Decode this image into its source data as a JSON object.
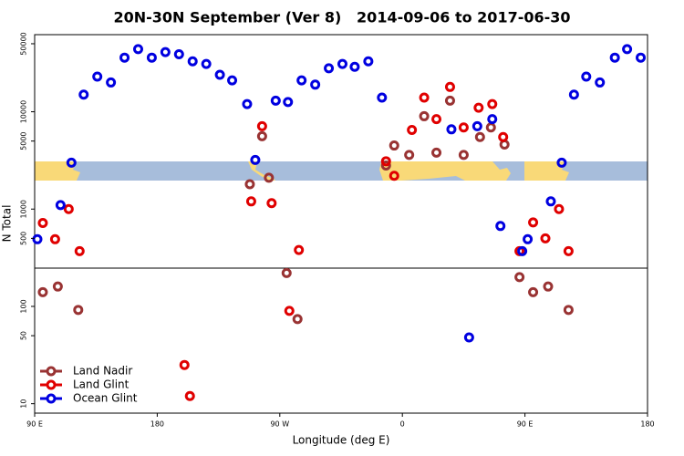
{
  "chart_data": {
    "type": "scatter",
    "title": "20N-30N September (Ver 8)   2014-09-06 to 2017-06-30",
    "xlabel": "Longitude (deg E)",
    "ylabel": "N Total",
    "xlim": [
      90,
      540
    ],
    "xticks": [
      {
        "value": 90,
        "label": "90 E"
      },
      180,
      {
        "value": 270,
        "label": "90 W"
      },
      {
        "value": 360,
        "label": "0"
      },
      {
        "value": 450,
        "label": "90 E"
      },
      {
        "value": 540,
        "label": "180"
      }
    ],
    "ylim": [
      8,
      62000
    ],
    "ylog": true,
    "yticks": [
      10,
      50,
      100,
      500,
      1000,
      5000,
      10000,
      50000
    ],
    "legend": "lower left",
    "series": [
      {
        "name": "Land Nadir",
        "color": "#993333",
        "x": [
          96,
          107,
          122,
          248,
          257,
          262,
          275,
          283,
          348,
          354,
          365,
          376,
          385,
          395,
          405,
          417,
          425,
          435,
          446,
          456,
          467,
          482
        ],
        "values": [
          140,
          160,
          92,
          1800,
          5600,
          2100,
          220,
          74,
          2800,
          4500,
          3600,
          9000,
          3800,
          13000,
          3600,
          5500,
          6900,
          4600,
          200,
          140,
          160,
          92
        ]
      },
      {
        "name": "Land Glint",
        "color": "#e00000",
        "x": [
          96,
          105,
          115,
          123,
          200,
          204,
          249,
          257,
          264,
          277,
          284,
          348,
          354,
          367,
          376,
          385,
          395,
          405,
          416,
          426,
          434,
          446,
          456,
          465,
          475,
          482
        ],
        "values": [
          720,
          490,
          1000,
          370,
          25,
          12,
          1200,
          7100,
          1150,
          90,
          380,
          3100,
          2200,
          6500,
          14000,
          8400,
          18000,
          6900,
          11000,
          12000,
          5500,
          370,
          730,
          500,
          1000,
          370
        ]
      },
      {
        "name": "Ocean Glint",
        "color": "#0000e0",
        "x": [
          92,
          109,
          117,
          126,
          136,
          146,
          156,
          166,
          176,
          186,
          196,
          206,
          216,
          226,
          235,
          246,
          252,
          267,
          276,
          286,
          296,
          306,
          316,
          325,
          335,
          345,
          396,
          409,
          415,
          426,
          432,
          448,
          452,
          469,
          477,
          486,
          495,
          505,
          516,
          525,
          535
        ],
        "values": [
          490,
          1100,
          3000,
          15000,
          23000,
          20000,
          36000,
          44000,
          36000,
          41000,
          39000,
          33000,
          31000,
          24000,
          21000,
          12000,
          3200,
          13000,
          12600,
          21000,
          19000,
          28000,
          31000,
          29000,
          33000,
          14000,
          6600,
          48,
          7100,
          8400,
          670,
          370,
          490,
          1200,
          3000,
          15000,
          23000,
          20000,
          36000,
          44000,
          36000
        ]
      }
    ]
  }
}
